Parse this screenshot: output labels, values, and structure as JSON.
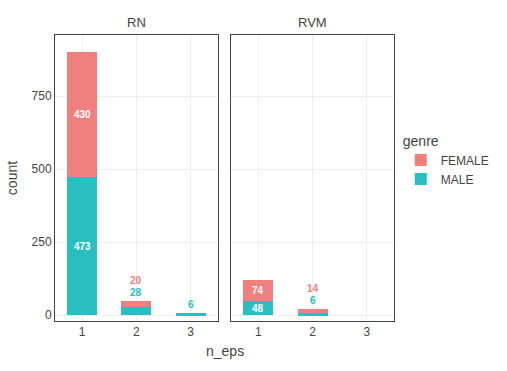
{
  "chart_data": [
    {
      "type": "bar",
      "title": "RN",
      "x": [
        1,
        2,
        3
      ],
      "xlim": [
        0.5,
        3.5
      ],
      "xticks": [
        1,
        2,
        3
      ],
      "ylim": [
        -20,
        960
      ],
      "yticks": [
        0,
        250,
        500,
        750
      ],
      "xlabel": "n_eps",
      "ylabel": "count",
      "legend_title": "genre",
      "legend": "right",
      "stacked": true,
      "data_labels": true,
      "grid": true,
      "series": [
        {
          "name": "MALE",
          "color": "#29BEC0",
          "values": [
            473,
            28,
            6
          ]
        },
        {
          "name": "FEMALE",
          "color": "#F08080",
          "values": [
            430,
            20,
            0
          ]
        }
      ]
    },
    {
      "type": "bar",
      "title": "RVM",
      "x": [
        1,
        2,
        3
      ],
      "xlim": [
        0.5,
        3.5
      ],
      "xticks": [
        1,
        2,
        3
      ],
      "ylim": [
        -20,
        960
      ],
      "yticks": [
        0,
        250,
        500,
        750
      ],
      "tick_labels": "x",
      "stacked": true,
      "data_labels": true,
      "grid": true,
      "series": [
        {
          "name": "MALE",
          "color": "#29BEC0",
          "values": [
            48,
            6,
            0
          ]
        },
        {
          "name": "FEMALE",
          "color": "#F08080",
          "values": [
            74,
            14,
            0
          ]
        }
      ]
    }
  ]
}
